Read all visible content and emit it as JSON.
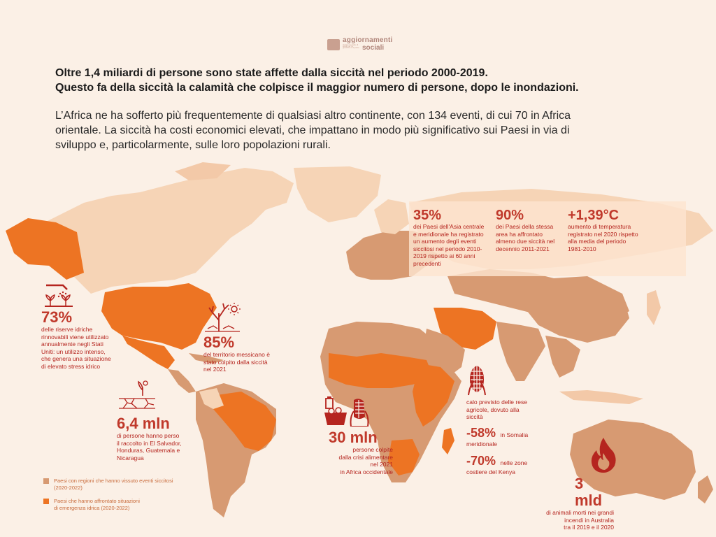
{
  "logo": {
    "line1": "aggiornamenti",
    "line2": "sociali",
    "tiny": "rivista mensile di studi per la giustizia e la pace"
  },
  "headline": {
    "line1": "Oltre 1,4 miliardi di persone sono state affette dalla siccità nel periodo 2000-2019.",
    "line2": "Questo fa della siccità la calamità che colpisce il maggior numero di persone, dopo le inondazioni."
  },
  "body": {
    "line1": "L’Africa ne ha sofferto più frequentemente di qualsiasi altro continente, con 134 eventi, di cui 70 in Africa",
    "line2": "orientale. La siccità ha costi economici elevati, che impattano in modo più significativo sui Paesi in via di",
    "line3": "sviluppo e, particolarmente, sulle loro popolazioni rurali."
  },
  "colors": {
    "background": "#fbf0e6",
    "land_light": "#f6d4b6",
    "land_mid": "#d79a72",
    "land_dark": "#ed7423",
    "text_red": "#b5251f"
  },
  "panel": {
    "s1": {
      "value": "35%",
      "l1": "dei Paesi dell'Asia centrale",
      "l2": "e meridionale ha registrato",
      "l3": "un aumento degli eventi",
      "l4": "siccitosi nel periodo 2010-",
      "l5": "2019 rispetto ai 60 anni",
      "l6": "precedenti"
    },
    "s2": {
      "value": "90%",
      "l1": "dei Paesi della stessa",
      "l2": "area ha affrontato",
      "l3": "almeno due siccità nel",
      "l4": "decennio 2011-2021"
    },
    "s3": {
      "value": "+1,39°C",
      "l1": "aumento di temperatura",
      "l2": "registrato nel 2020 rispetto",
      "l3": "alla media del periodo",
      "l4": "1981-2010"
    }
  },
  "usa": {
    "value": "73%",
    "icon": "irrigation-plants-icon",
    "l1": "delle riserve idriche",
    "l2": "rinnovabili viene utilizzato",
    "l3": "annualmente negli Stati",
    "l4": "Uniti: un utilizzo intenso,",
    "l5": "che genera una situazione",
    "l6": "di elevato stress idrico"
  },
  "mexico": {
    "value": "85%",
    "icon": "dry-tree-sun-icon",
    "l1": "del territorio messicano è",
    "l2": "stato colpito dalla siccità",
    "l3": "nel 2021"
  },
  "central_america": {
    "value": "6,4 mln",
    "icon": "cracked-ground-sprout-icon",
    "l1": "di persone hanno perso",
    "l2": "il raccolto in El Salvador,",
    "l3": "Honduras, Guatemala e",
    "l4": "Nicaragua"
  },
  "west_africa": {
    "value": "30 mln",
    "icon": "food-basket-icon",
    "l1": "persone colpite",
    "l2": "dalla crisi alimentare",
    "l3": "nel 2021",
    "l4": "in Africa occidentale"
  },
  "east_africa": {
    "icon": "corn-icon",
    "l1": "calo previsto delle rese",
    "l2": "agricole, dovuto alla",
    "l3": "siccità",
    "s1_value": "-58%",
    "s1_a": "in Somalia",
    "s1_b": "meridionale",
    "s2_value": "-70%",
    "s2_a": "nelle zone",
    "s2_b": "costiere del Kenya"
  },
  "australia": {
    "value": "3 mld",
    "icon": "fire-icon",
    "l1": "di animali morti nei grandi",
    "l2": "incendi in Australia",
    "l3": "tra il 2019 e il 2020"
  },
  "legend": {
    "item1": {
      "l1": "Paesi con regioni che hanno vissuto eventi siccitosi",
      "l2": "(2020-2022)"
    },
    "item2": {
      "l1": "Paesi che hanno affrontato situazioni",
      "l2": "di emergenza idrica (2020-2022)"
    }
  }
}
